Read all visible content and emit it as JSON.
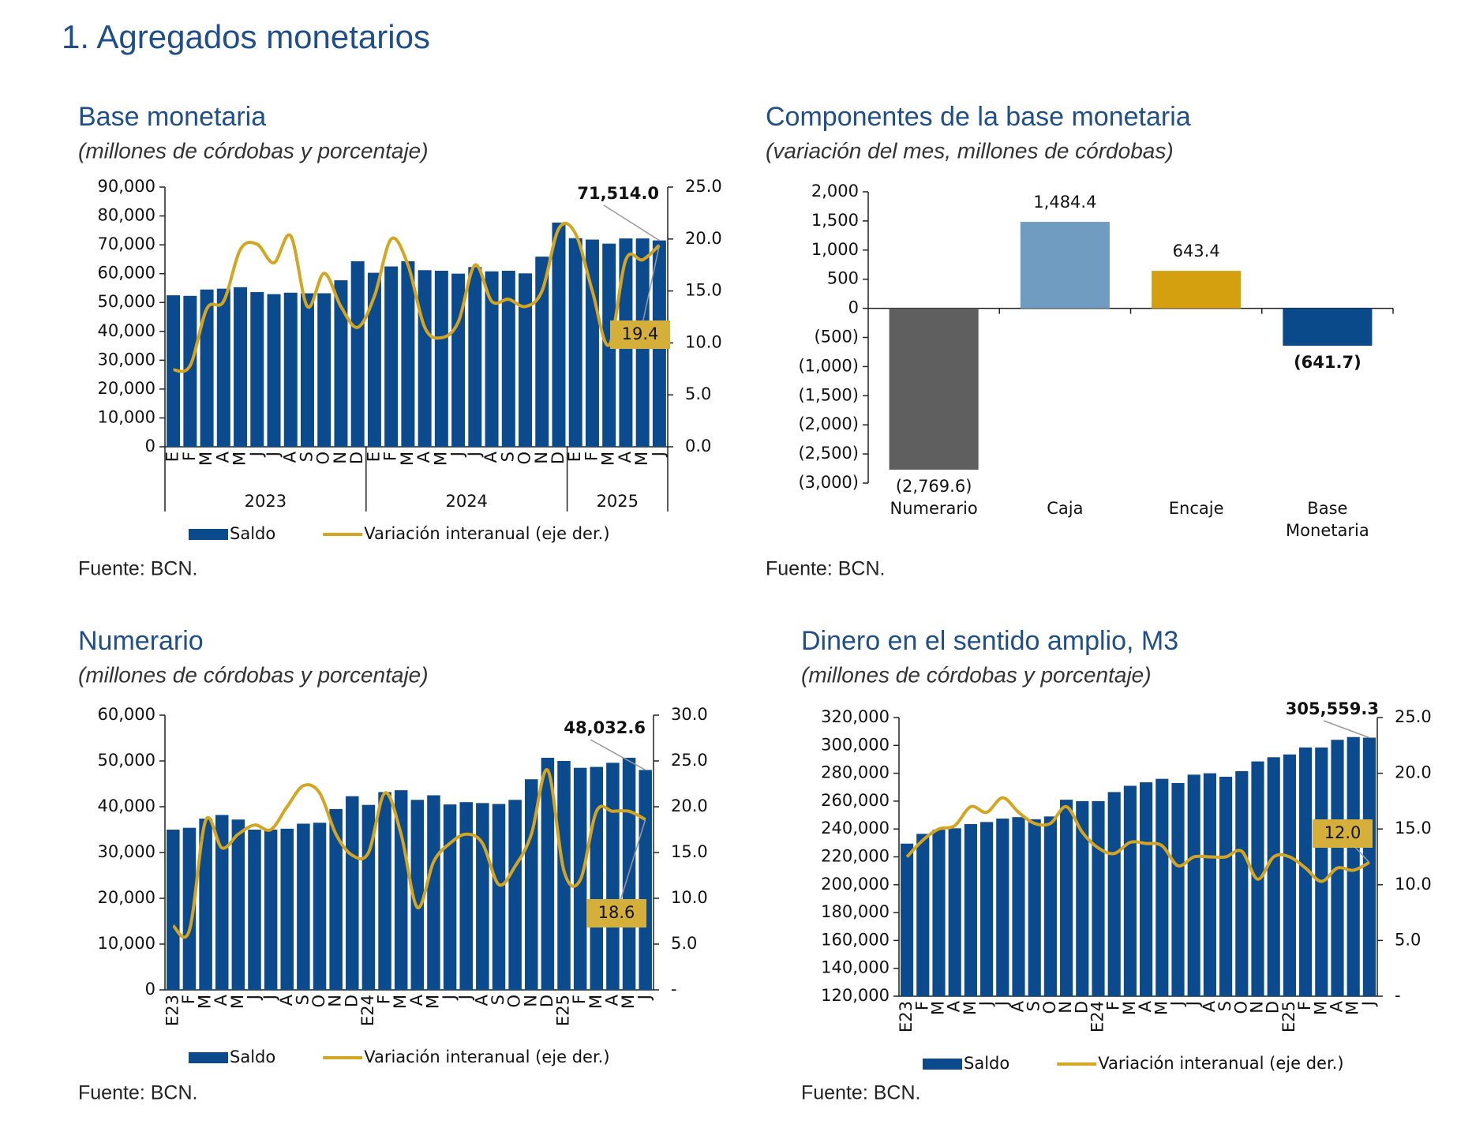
{
  "title": "1.  Agregados monetarios",
  "chart_data": [
    {
      "type": "combo",
      "title": "Base monetaria",
      "subtitle": "(millones de córdobas y porcentaje)",
      "source": "Fuente: BCN.",
      "categories": [
        "E",
        "F",
        "M",
        "A",
        "M",
        "J",
        "J",
        "A",
        "S",
        "O",
        "N",
        "D",
        "E",
        "F",
        "M",
        "A",
        "M",
        "J",
        "J",
        "A",
        "S",
        "O",
        "N",
        "D",
        "E",
        "F",
        "M",
        "A",
        "M",
        "J"
      ],
      "groups": [
        {
          "label": "2023",
          "count": 12
        },
        {
          "label": "2024",
          "count": 12
        },
        {
          "label": "2025",
          "count": 6
        }
      ],
      "series": [
        {
          "name": "Saldo",
          "type": "bar",
          "color": "#0b4a8c",
          "values": [
            52500,
            52300,
            54500,
            54800,
            55300,
            53600,
            52900,
            53400,
            53200,
            53200,
            57700,
            64300,
            60300,
            62500,
            64300,
            61200,
            61000,
            60000,
            62300,
            60800,
            61000,
            60100,
            65900,
            77700,
            72300,
            71800,
            70400,
            72200,
            72200,
            71514.0
          ],
          "value_labels": [
            null,
            null,
            null,
            null,
            null,
            null,
            null,
            null,
            null,
            null,
            null,
            null,
            null,
            null,
            null,
            null,
            null,
            null,
            null,
            null,
            null,
            null,
            null,
            null,
            null,
            null,
            null,
            null,
            null,
            "71,514.0"
          ]
        },
        {
          "name": "Variación interanual (eje der.)",
          "type": "line",
          "axis": "y2",
          "color": "#d4a520",
          "values": [
            7.4,
            7.8,
            13.3,
            14,
            19,
            19.5,
            17.7,
            20.3,
            13.5,
            16.7,
            13.5,
            11.5,
            14.5,
            20,
            17.5,
            11.5,
            10.5,
            12,
            17.5,
            14,
            14.2,
            13.5,
            15,
            21,
            20.5,
            15,
            9.8,
            18,
            18,
            19.4
          ],
          "value_labels": [
            null,
            null,
            null,
            null,
            null,
            null,
            null,
            null,
            null,
            null,
            null,
            null,
            null,
            null,
            null,
            null,
            null,
            null,
            null,
            null,
            null,
            null,
            null,
            null,
            null,
            null,
            null,
            null,
            null,
            "19.4"
          ]
        }
      ],
      "ylim": [
        0,
        90000
      ],
      "yticks": [
        0,
        {
          "value": 10000,
          "label": "10,000"
        },
        {
          "value": 20000,
          "label": "20,000"
        },
        {
          "value": 30000,
          "label": "30,000"
        },
        {
          "value": 40000,
          "label": "40,000"
        },
        {
          "value": 50000,
          "label": "50,000"
        },
        {
          "value": 60000,
          "label": "60,000"
        },
        {
          "value": 70000,
          "label": "70,000"
        },
        {
          "value": 80000,
          "label": "80,000"
        },
        {
          "value": 90000,
          "label": "90,000"
        }
      ],
      "y2lim": [
        0,
        25
      ],
      "y2ticks": [
        {
          "value": 0,
          "label": "0.0"
        },
        {
          "value": 5,
          "label": "5.0"
        },
        {
          "value": 10,
          "label": "10.0"
        },
        {
          "value": 15,
          "label": "15.0"
        },
        {
          "value": 20,
          "label": "20.0"
        },
        {
          "value": 25,
          "label": "25.0"
        }
      ]
    },
    {
      "type": "bar",
      "title": "Componentes de la base monetaria",
      "subtitle": "(variación del mes, millones de córdobas)",
      "source": "Fuente: BCN.",
      "categories": [
        "Numerario",
        "Caja",
        "Encaje",
        "Base Monetaria"
      ],
      "values": [
        -2769.6,
        1484.4,
        643.4,
        -641.7
      ],
      "value_labels": [
        "(2,769.6)",
        "1,484.4",
        "643.4",
        "(641.7)"
      ],
      "colors": [
        "#5f5f5f",
        "#6f9cc0",
        "#d4a010",
        "#0a4a8a"
      ],
      "ylim": [
        -3000,
        2000
      ],
      "yticks": [
        {
          "value": -3000,
          "label": "(3,000)"
        },
        {
          "value": -2500,
          "label": "(2,500)"
        },
        {
          "value": -2000,
          "label": "(2,000)"
        },
        {
          "value": -1500,
          "label": "(1,500)"
        },
        {
          "value": -1000,
          "label": "(1,000)"
        },
        {
          "value": -500,
          "label": "(500)"
        },
        0,
        {
          "value": 500,
          "label": "500"
        },
        {
          "value": 1000,
          "label": "1,000"
        },
        {
          "value": 1500,
          "label": "1,500"
        },
        {
          "value": 2000,
          "label": "2,000"
        }
      ]
    },
    {
      "type": "combo",
      "title": "Numerario",
      "subtitle": "(millones de córdobas y porcentaje)",
      "source": "Fuente: BCN.",
      "categories": [
        "E23",
        "F",
        "M",
        "A",
        "M",
        "J",
        "J",
        "A",
        "S",
        "O",
        "N",
        "D",
        "E24",
        "F",
        "M",
        "A",
        "M",
        "J",
        "J",
        "A",
        "S",
        "O",
        "N",
        "D",
        "E25",
        "F",
        "M",
        "A",
        "M",
        "J"
      ],
      "series": [
        {
          "name": "Saldo",
          "type": "bar",
          "color": "#0b4a8c",
          "values": [
            35000,
            35400,
            37400,
            38200,
            37200,
            35000,
            35000,
            35200,
            36300,
            36500,
            39500,
            42300,
            40400,
            43200,
            43600,
            41500,
            42500,
            40500,
            41000,
            40800,
            40600,
            41500,
            46000,
            50700,
            50000,
            48500,
            48700,
            49600,
            50700,
            48032.6
          ],
          "value_labels": [
            null,
            null,
            null,
            null,
            null,
            null,
            null,
            null,
            null,
            null,
            null,
            null,
            null,
            null,
            null,
            null,
            null,
            null,
            null,
            null,
            null,
            null,
            null,
            null,
            null,
            null,
            null,
            null,
            null,
            "48,032.6"
          ]
        },
        {
          "name": "Variación interanual (eje der.)",
          "type": "line",
          "axis": "y2",
          "color": "#d4a520",
          "values": [
            7,
            6.5,
            18.5,
            15.5,
            17,
            18,
            17.5,
            20,
            22.3,
            21.5,
            17,
            14.7,
            15,
            21.5,
            17,
            9,
            14,
            16,
            17,
            16,
            11.5,
            13.5,
            17,
            24,
            13,
            12,
            19.5,
            19.5,
            19.5,
            18.6
          ],
          "value_labels": [
            null,
            null,
            null,
            null,
            null,
            null,
            null,
            null,
            null,
            null,
            null,
            null,
            null,
            null,
            null,
            null,
            null,
            null,
            null,
            null,
            null,
            null,
            null,
            null,
            null,
            null,
            null,
            null,
            null,
            "18.6"
          ]
        }
      ],
      "ylim": [
        0,
        60000
      ],
      "yticks": [
        0,
        {
          "value": 10000,
          "label": "10,000"
        },
        {
          "value": 20000,
          "label": "20,000"
        },
        {
          "value": 30000,
          "label": "30,000"
        },
        {
          "value": 40000,
          "label": "40,000"
        },
        {
          "value": 50000,
          "label": "50,000"
        },
        {
          "value": 60000,
          "label": "60,000"
        }
      ],
      "y2lim": [
        0,
        30
      ],
      "y2ticks": [
        {
          "value": 0,
          "label": "-"
        },
        {
          "value": 5,
          "label": "5.0"
        },
        {
          "value": 10,
          "label": "10.0"
        },
        {
          "value": 15,
          "label": "15.0"
        },
        {
          "value": 20,
          "label": "20.0"
        },
        {
          "value": 25,
          "label": "25.0"
        },
        {
          "value": 30,
          "label": "30.0"
        }
      ]
    },
    {
      "type": "combo",
      "title": "Dinero en el sentido amplio, M3",
      "subtitle": "(millones de córdobas y porcentaje)",
      "source": "Fuente: BCN.",
      "categories": [
        "E23",
        "F",
        "M",
        "A",
        "M",
        "J",
        "J",
        "A",
        "S",
        "O",
        "N",
        "D",
        "E24",
        "F",
        "M",
        "A",
        "M",
        "J",
        "J",
        "A",
        "S",
        "O",
        "N",
        "D",
        "E25",
        "F",
        "M",
        "A",
        "M",
        "J"
      ],
      "series": [
        {
          "name": "Saldo",
          "type": "bar",
          "color": "#0b4a8c",
          "values": [
            229500,
            236500,
            239500,
            240500,
            243500,
            245000,
            247500,
            248500,
            247000,
            249000,
            261000,
            260000,
            260000,
            266500,
            271000,
            273500,
            276000,
            273000,
            279000,
            280000,
            277500,
            281500,
            288500,
            291500,
            293500,
            298500,
            298500,
            304000,
            306000,
            305559.3
          ],
          "value_labels": [
            null,
            null,
            null,
            null,
            null,
            null,
            null,
            null,
            null,
            null,
            null,
            null,
            null,
            null,
            null,
            null,
            null,
            null,
            null,
            null,
            null,
            null,
            null,
            null,
            null,
            null,
            null,
            null,
            null,
            "305,559.3"
          ]
        },
        {
          "name": "Variación interanual (eje der.)",
          "type": "line",
          "axis": "y2",
          "color": "#d4a520",
          "values": [
            12.5,
            14,
            15,
            15.3,
            17,
            16.5,
            17.8,
            16.5,
            15.5,
            15.5,
            17,
            14.7,
            13.3,
            12.8,
            13.8,
            13.7,
            13.5,
            11.7,
            12.5,
            12.5,
            12.5,
            13,
            10.5,
            12.5,
            12.5,
            11.5,
            10.3,
            11.5,
            11.3,
            12.0
          ],
          "value_labels": [
            null,
            null,
            null,
            null,
            null,
            null,
            null,
            null,
            null,
            null,
            null,
            null,
            null,
            null,
            null,
            null,
            null,
            null,
            null,
            null,
            null,
            null,
            null,
            null,
            null,
            null,
            null,
            null,
            null,
            "12.0"
          ]
        }
      ],
      "ylim": [
        120000,
        320000
      ],
      "yticks": [
        {
          "value": 120000,
          "label": "120,000"
        },
        {
          "value": 140000,
          "label": "140,000"
        },
        {
          "value": 160000,
          "label": "160,000"
        },
        {
          "value": 180000,
          "label": "180,000"
        },
        {
          "value": 200000,
          "label": "200,000"
        },
        {
          "value": 220000,
          "label": "220,000"
        },
        {
          "value": 240000,
          "label": "240,000"
        },
        {
          "value": 260000,
          "label": "260,000"
        },
        {
          "value": 280000,
          "label": "280,000"
        },
        {
          "value": 300000,
          "label": "300,000"
        },
        {
          "value": 320000,
          "label": "320,000"
        }
      ],
      "y2lim": [
        0,
        25
      ],
      "y2ticks": [
        {
          "value": 0,
          "label": "-"
        },
        {
          "value": 5,
          "label": "5.0"
        },
        {
          "value": 10,
          "label": "10.0"
        },
        {
          "value": 15,
          "label": "15.0"
        },
        {
          "value": 20,
          "label": "20.0"
        },
        {
          "value": 25,
          "label": "25.0"
        }
      ]
    }
  ]
}
